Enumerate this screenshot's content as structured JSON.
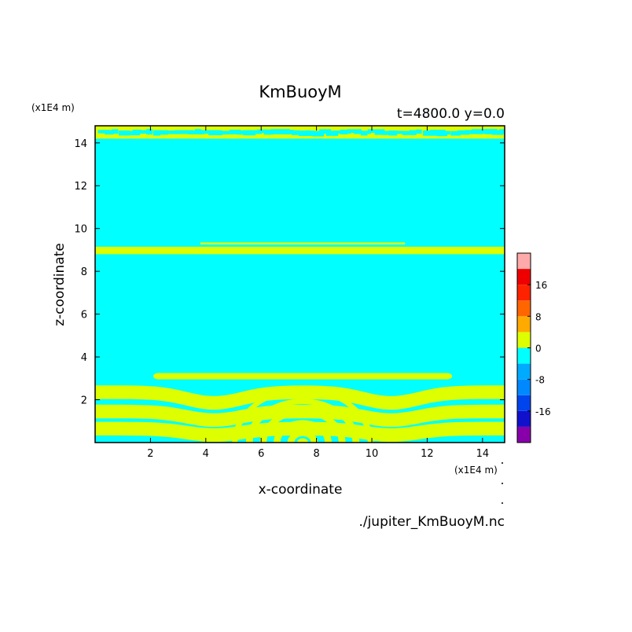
{
  "chart_data": {
    "type": "heatmap",
    "title": "KmBuoyM",
    "subtitle": "t=4800.0 y=0.0",
    "xlabel": "x-coordinate",
    "ylabel": "z-coordinate",
    "x_unit": "(x1E4 m)",
    "y_unit": "(x1E4 m)",
    "source_file": "./jupiter_KmBuoyM.nc",
    "xlim": [
      0,
      14.8
    ],
    "ylim": [
      0,
      14.8
    ],
    "x_ticks": [
      2,
      4,
      6,
      8,
      10,
      12,
      14
    ],
    "y_ticks": [
      2,
      4,
      6,
      8,
      10,
      12,
      14
    ],
    "colorbar": {
      "levels": [
        -24,
        -20,
        -16,
        -12,
        -8,
        -4,
        0,
        4,
        8,
        12,
        16,
        20,
        24
      ],
      "colors": [
        "#8800aa",
        "#1111cc",
        "#0044ee",
        "#0088ff",
        "#00aaff",
        "#00ffff",
        "#ddff00",
        "#ffaa00",
        "#ff6600",
        "#ff2200",
        "#ee0000",
        "#ffaaaa"
      ],
      "tick_labels": [
        "-16",
        "-8",
        "0",
        "8",
        "16"
      ],
      "tick_values": [
        -16,
        -8,
        0,
        8,
        16
      ]
    },
    "background_color": "#00ffff",
    "contour_color": "#ddff00",
    "features": {
      "top_layer": {
        "z": [
          14.2,
          14.8
        ]
      },
      "mid_band": {
        "z": [
          8.8,
          9.15
        ],
        "x": [
          0,
          14.8
        ]
      },
      "mid_band_upper": {
        "z": [
          9.25,
          9.35
        ],
        "x": [
          3.8,
          11.2
        ]
      },
      "arc_band": {
        "z": [
          2.95,
          3.25
        ],
        "x": [
          2.1,
          12.9
        ]
      },
      "lower_bands": [
        {
          "z_edge": 2.35,
          "z_mid": 1.85
        },
        {
          "z_edge": 1.45,
          "z_mid": 1.05
        },
        {
          "z_edge": 0.65,
          "z_mid": 0.35
        }
      ],
      "dome_center_x": 7.5,
      "dome_arcs": [
        {
          "radius": 2.55,
          "width": 0.2
        },
        {
          "radius": 2.05,
          "width": 0.25
        },
        {
          "radius": 1.55,
          "width": 0.25
        },
        {
          "radius": 1.05,
          "width": 0.25
        },
        {
          "radius": 0.55,
          "width": 0.25
        },
        {
          "radius": 0.2,
          "width": 0.2
        }
      ]
    }
  }
}
